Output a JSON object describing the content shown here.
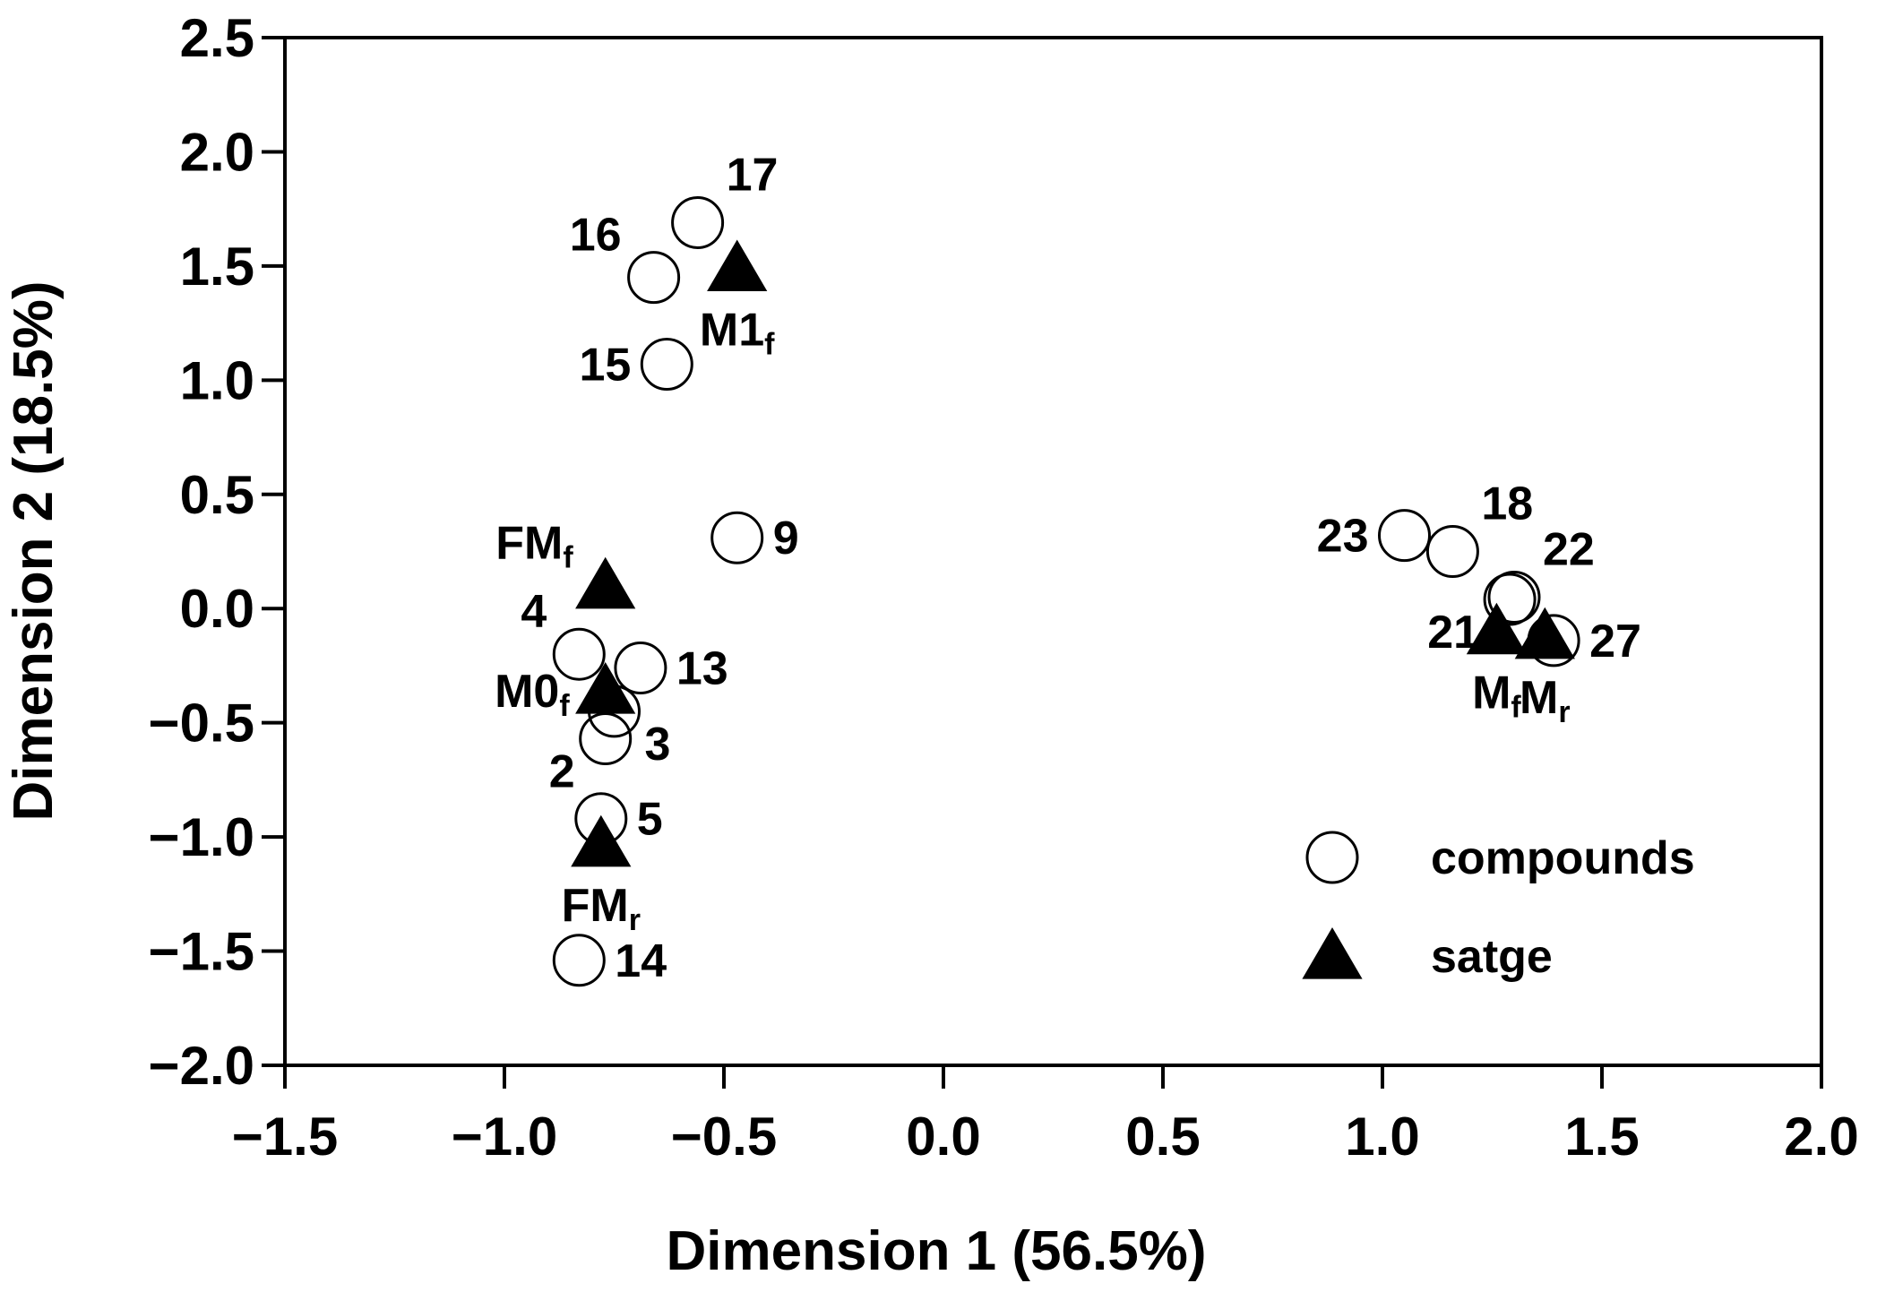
{
  "chart_data": {
    "type": "scatter",
    "xlabel": "Dimension 1 (56.5%)",
    "ylabel": "Dimension 2 (18.5%)",
    "xlim": [
      -1.5,
      2.0
    ],
    "ylim": [
      -2.0,
      2.5
    ],
    "xticks": [
      -1.5,
      -1.0,
      -0.5,
      0.0,
      0.5,
      1.0,
      1.5,
      2.0
    ],
    "yticks": [
      -2.0,
      -1.5,
      -1.0,
      -0.5,
      0.0,
      0.5,
      1.0,
      1.5,
      2.0,
      2.5
    ],
    "xtick_labels": [
      "−1.5",
      "−1.0",
      "−0.5",
      "0.0",
      "0.5",
      "1.0",
      "1.5",
      "2.0"
    ],
    "ytick_labels": [
      "−2.0",
      "−1.5",
      "−1.0",
      "−0.5",
      "0.0",
      "0.5",
      "1.0",
      "1.5",
      "2.0",
      "2.5"
    ],
    "grid": false,
    "legend_position": "bottom-right",
    "series": [
      {
        "name": "compounds",
        "marker": "open-circle",
        "points": [
          {
            "label": "17",
            "x": -0.56,
            "y": 1.69,
            "label_side": "upper-right"
          },
          {
            "label": "16",
            "x": -0.66,
            "y": 1.45,
            "label_side": "upper-left"
          },
          {
            "label": "15",
            "x": -0.63,
            "y": 1.07,
            "label_side": "left"
          },
          {
            "label": "9",
            "x": -0.47,
            "y": 0.31,
            "label_side": "right"
          },
          {
            "label": "4",
            "x": -0.83,
            "y": -0.2,
            "label_side": "upper-left"
          },
          {
            "label": "13",
            "x": -0.69,
            "y": -0.26,
            "label_side": "right"
          },
          {
            "label": "3",
            "x": -0.75,
            "y": -0.45,
            "label_side": "lower-right"
          },
          {
            "label": "2",
            "x": -0.77,
            "y": -0.57,
            "label_side": "lower-left"
          },
          {
            "label": "5",
            "x": -0.78,
            "y": -0.92,
            "label_side": "right"
          },
          {
            "label": "14",
            "x": -0.83,
            "y": -1.54,
            "label_side": "right"
          },
          {
            "label": "23",
            "x": 1.05,
            "y": 0.32,
            "label_side": "left"
          },
          {
            "label": "18",
            "x": 1.16,
            "y": 0.25,
            "label_side": "upper-right"
          },
          {
            "label": "22",
            "x": 1.3,
            "y": 0.05,
            "label_side": "upper-right"
          },
          {
            "label": "21",
            "x": 1.29,
            "y": 0.04,
            "label_side": "lower-left"
          },
          {
            "label": "27",
            "x": 1.39,
            "y": -0.14,
            "label_side": "right"
          }
        ]
      },
      {
        "name": "satge",
        "marker": "filled-triangle",
        "points": [
          {
            "label": "M1",
            "sub": "f",
            "x": -0.47,
            "y": 1.49,
            "label_side": "below"
          },
          {
            "label": "FM",
            "sub": "f",
            "x": -0.77,
            "y": 0.1,
            "label_side": "upper-left"
          },
          {
            "label": "M0",
            "sub": "f",
            "x": -0.77,
            "y": -0.36,
            "label_side": "left"
          },
          {
            "label": "FM",
            "sub": "r",
            "x": -0.78,
            "y": -1.03,
            "label_side": "below"
          },
          {
            "label": "M",
            "sub": "f",
            "x": 1.26,
            "y": -0.1,
            "label_side": "below"
          },
          {
            "label": "M",
            "sub": "r",
            "x": 1.37,
            "y": -0.12,
            "label_side": "below"
          }
        ]
      }
    ],
    "legend": [
      {
        "label": "compounds",
        "marker": "open-circle"
      },
      {
        "label": "satge",
        "marker": "filled-triangle"
      }
    ]
  }
}
